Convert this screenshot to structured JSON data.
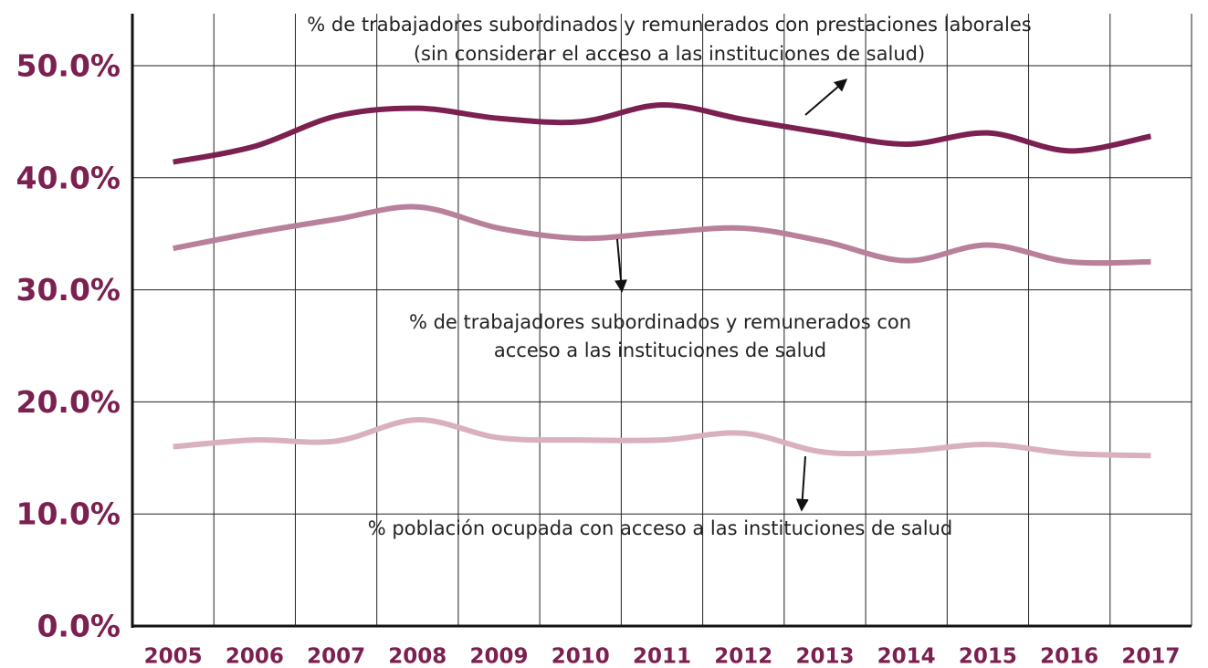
{
  "chart_data": {
    "type": "line",
    "categories": [
      "2005",
      "2006",
      "2007",
      "2008",
      "2009",
      "2010",
      "2011",
      "2012",
      "2013",
      "2014",
      "2015",
      "2016",
      "2017"
    ],
    "series": [
      {
        "color": "#7b2050",
        "values": [
          41.4,
          42.8,
          45.5,
          46.2,
          45.3,
          45.0,
          46.5,
          45.2,
          44.0,
          43.0,
          44.0,
          42.4,
          43.7
        ]
      },
      {
        "color": "#b8809b",
        "values": [
          33.7,
          35.1,
          36.3,
          37.4,
          35.5,
          34.6,
          35.1,
          35.5,
          34.3,
          32.6,
          34.0,
          32.5,
          32.5
        ]
      },
      {
        "color": "#d9b0bf",
        "values": [
          16.0,
          16.6,
          16.5,
          18.4,
          16.8,
          16.6,
          16.6,
          17.2,
          15.5,
          15.6,
          16.2,
          15.4,
          15.2
        ]
      }
    ],
    "annotations": [
      {
        "lines": [
          "% de trabajadores subordinados y remunerados con prestaciones laborales",
          "(sin considerar el acceso a las instituciones de salud)"
        ]
      },
      {
        "lines": [
          "% de trabajadores subordinados y remunerados con",
          "acceso a las instituciones de salud"
        ]
      },
      {
        "lines": [
          "% población ocupada con acceso a las instituciones de salud"
        ]
      }
    ],
    "ylim": [
      0,
      50
    ],
    "yticks": [
      {
        "value": 0,
        "label": "0.0%"
      },
      {
        "value": 10,
        "label": "10.0%"
      },
      {
        "value": 20,
        "label": "20.0%"
      },
      {
        "value": 30,
        "label": "30.0%"
      },
      {
        "value": 40,
        "label": "40.0%"
      },
      {
        "value": 50,
        "label": "50.0%"
      }
    ],
    "grid": true
  }
}
